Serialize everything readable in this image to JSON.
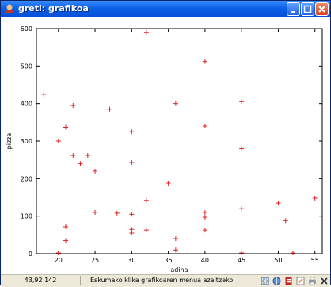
{
  "window": {
    "title": "gretl: grafikoa"
  },
  "titlebar_buttons": [
    "minimize",
    "maximize",
    "close"
  ],
  "chart_data": {
    "type": "scatter",
    "xlabel": "adina",
    "ylabel": "pizza",
    "xlim": [
      17,
      56
    ],
    "ylim": [
      0,
      600
    ],
    "xticks": [
      20,
      25,
      30,
      35,
      40,
      45,
      50,
      55
    ],
    "yticks": [
      0,
      100,
      200,
      300,
      400,
      500,
      600
    ],
    "marker_color": "#e02020",
    "points": [
      [
        18,
        425
      ],
      [
        20,
        300
      ],
      [
        20,
        2
      ],
      [
        21,
        337
      ],
      [
        21,
        72
      ],
      [
        21,
        35
      ],
      [
        22,
        395
      ],
      [
        22,
        262
      ],
      [
        23,
        240
      ],
      [
        24,
        262
      ],
      [
        25,
        220
      ],
      [
        25,
        110
      ],
      [
        27,
        385
      ],
      [
        28,
        108
      ],
      [
        30,
        325
      ],
      [
        30,
        243
      ],
      [
        30,
        105
      ],
      [
        30,
        65
      ],
      [
        30,
        55
      ],
      [
        32,
        590
      ],
      [
        32,
        142
      ],
      [
        32,
        63
      ],
      [
        35,
        188
      ],
      [
        36,
        400
      ],
      [
        36,
        40
      ],
      [
        36,
        10
      ],
      [
        40,
        512
      ],
      [
        40,
        340
      ],
      [
        40,
        110
      ],
      [
        40,
        97
      ],
      [
        40,
        63
      ],
      [
        45,
        405
      ],
      [
        45,
        280
      ],
      [
        45,
        120
      ],
      [
        45,
        2
      ],
      [
        50,
        135
      ],
      [
        51,
        88
      ],
      [
        52,
        2
      ],
      [
        55,
        148
      ]
    ]
  },
  "statusbar": {
    "coords": "43,92 142",
    "message": "Eskumako klika grafikoaren menua azaltzeko",
    "icons": [
      "zoom-icon",
      "globe-icon",
      "pdf-icon",
      "edit-icon",
      "print-icon",
      "close-icon"
    ]
  }
}
